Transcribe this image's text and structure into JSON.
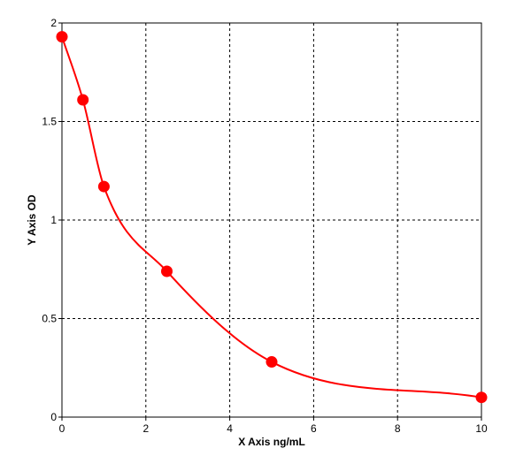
{
  "chart_data": {
    "type": "scatter",
    "xlabel": "X Axis ng/mL",
    "ylabel": "Y Axis OD",
    "xlim": [
      0,
      10
    ],
    "ylim": [
      0,
      2
    ],
    "xticks": [
      0,
      2,
      4,
      6,
      8,
      10
    ],
    "yticks": [
      0,
      0.5,
      1,
      1.5,
      2
    ],
    "ytick_labels": [
      "0",
      "0.5",
      "1",
      "1.5",
      "2"
    ],
    "grid": true,
    "grid_style": "dashed",
    "points": [
      {
        "x": 0.0,
        "y": 1.93
      },
      {
        "x": 0.5,
        "y": 1.61
      },
      {
        "x": 1.0,
        "y": 1.17
      },
      {
        "x": 2.5,
        "y": 0.74
      },
      {
        "x": 5.0,
        "y": 0.28
      },
      {
        "x": 10.0,
        "y": 0.1
      }
    ],
    "fit_curve": "smooth decreasing curve through the points",
    "series_color": "#ff0000",
    "grid_color": "#000000"
  }
}
